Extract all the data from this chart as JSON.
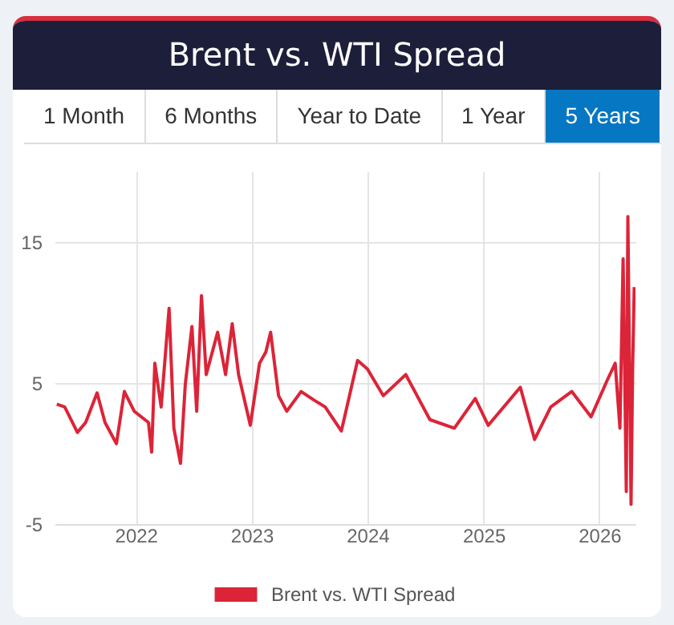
{
  "chart_data": {
    "type": "line",
    "title": "Brent vs. WTI Spread",
    "annotations": [
      "1 Month",
      "6 Months",
      "Year to Date",
      "1 Year",
      "5 Years"
    ],
    "x": [
      "2021-04-27",
      "2021-05-22",
      "2021-07-01",
      "2021-07-27",
      "2021-09-01",
      "2021-09-26",
      "2021-11-01",
      "2021-11-26",
      "2021-12-27",
      "2022-02-10",
      "2022-02-20",
      "2022-03-02",
      "2022-03-22",
      "2022-04-16",
      "2022-05-01",
      "2022-05-22",
      "2022-06-06",
      "2022-06-27",
      "2022-07-12",
      "2022-07-27",
      "2022-08-11",
      "2022-09-16",
      "2022-10-11",
      "2022-11-01",
      "2022-11-21",
      "2022-12-28",
      "2023-01-26",
      "2023-02-15",
      "2023-03-02",
      "2023-03-27",
      "2023-04-22",
      "2023-06-06",
      "2023-07-16",
      "2023-08-21",
      "2023-10-11",
      "2023-12-01",
      "2024-01-01",
      "2024-02-20",
      "2024-05-01",
      "2024-07-16",
      "2024-10-01",
      "2024-12-06",
      "2025-01-16",
      "2025-04-27",
      "2025-06-11",
      "2025-08-01",
      "2025-10-06",
      "2025-12-06",
      "2026-01-26",
      "2026-02-20",
      "2026-03-07",
      "2026-03-17",
      "2026-03-27",
      "2026-04-01",
      "2026-04-11",
      "2026-04-16",
      "2026-04-21"
    ],
    "series": [
      {
        "name": "Brent vs. WTI Spread",
        "color": "#dc2438",
        "values": [
          3.5,
          3.3,
          1.5,
          2.2,
          4.3,
          2.2,
          0.7,
          4.4,
          3,
          2.2,
          0.1,
          6.4,
          3.3,
          10.3,
          1.8,
          -0.7,
          4.9,
          9,
          3,
          11.2,
          5.6,
          8.6,
          5.6,
          9.2,
          5.6,
          2,
          6.4,
          7.2,
          8.6,
          4.1,
          3,
          4.4,
          3.8,
          3.3,
          1.6,
          6.6,
          6,
          4.1,
          5.6,
          2.4,
          1.8,
          3.9,
          2,
          4.7,
          1,
          3.3,
          4.4,
          2.6,
          5.2,
          6.4,
          1.8,
          13.8,
          -2.7,
          16.8,
          -3.6,
          6,
          11.8
        ]
      }
    ],
    "xlim": [
      "2021-04-20",
      "2026-04-25"
    ],
    "xticks": [
      "2022",
      "2023",
      "2024",
      "2025",
      "2026"
    ],
    "ylim": [
      -5,
      20
    ],
    "yticks": [
      -5,
      5,
      15
    ],
    "grid": true,
    "legend": "bottom",
    "line_style": "solid"
  }
}
